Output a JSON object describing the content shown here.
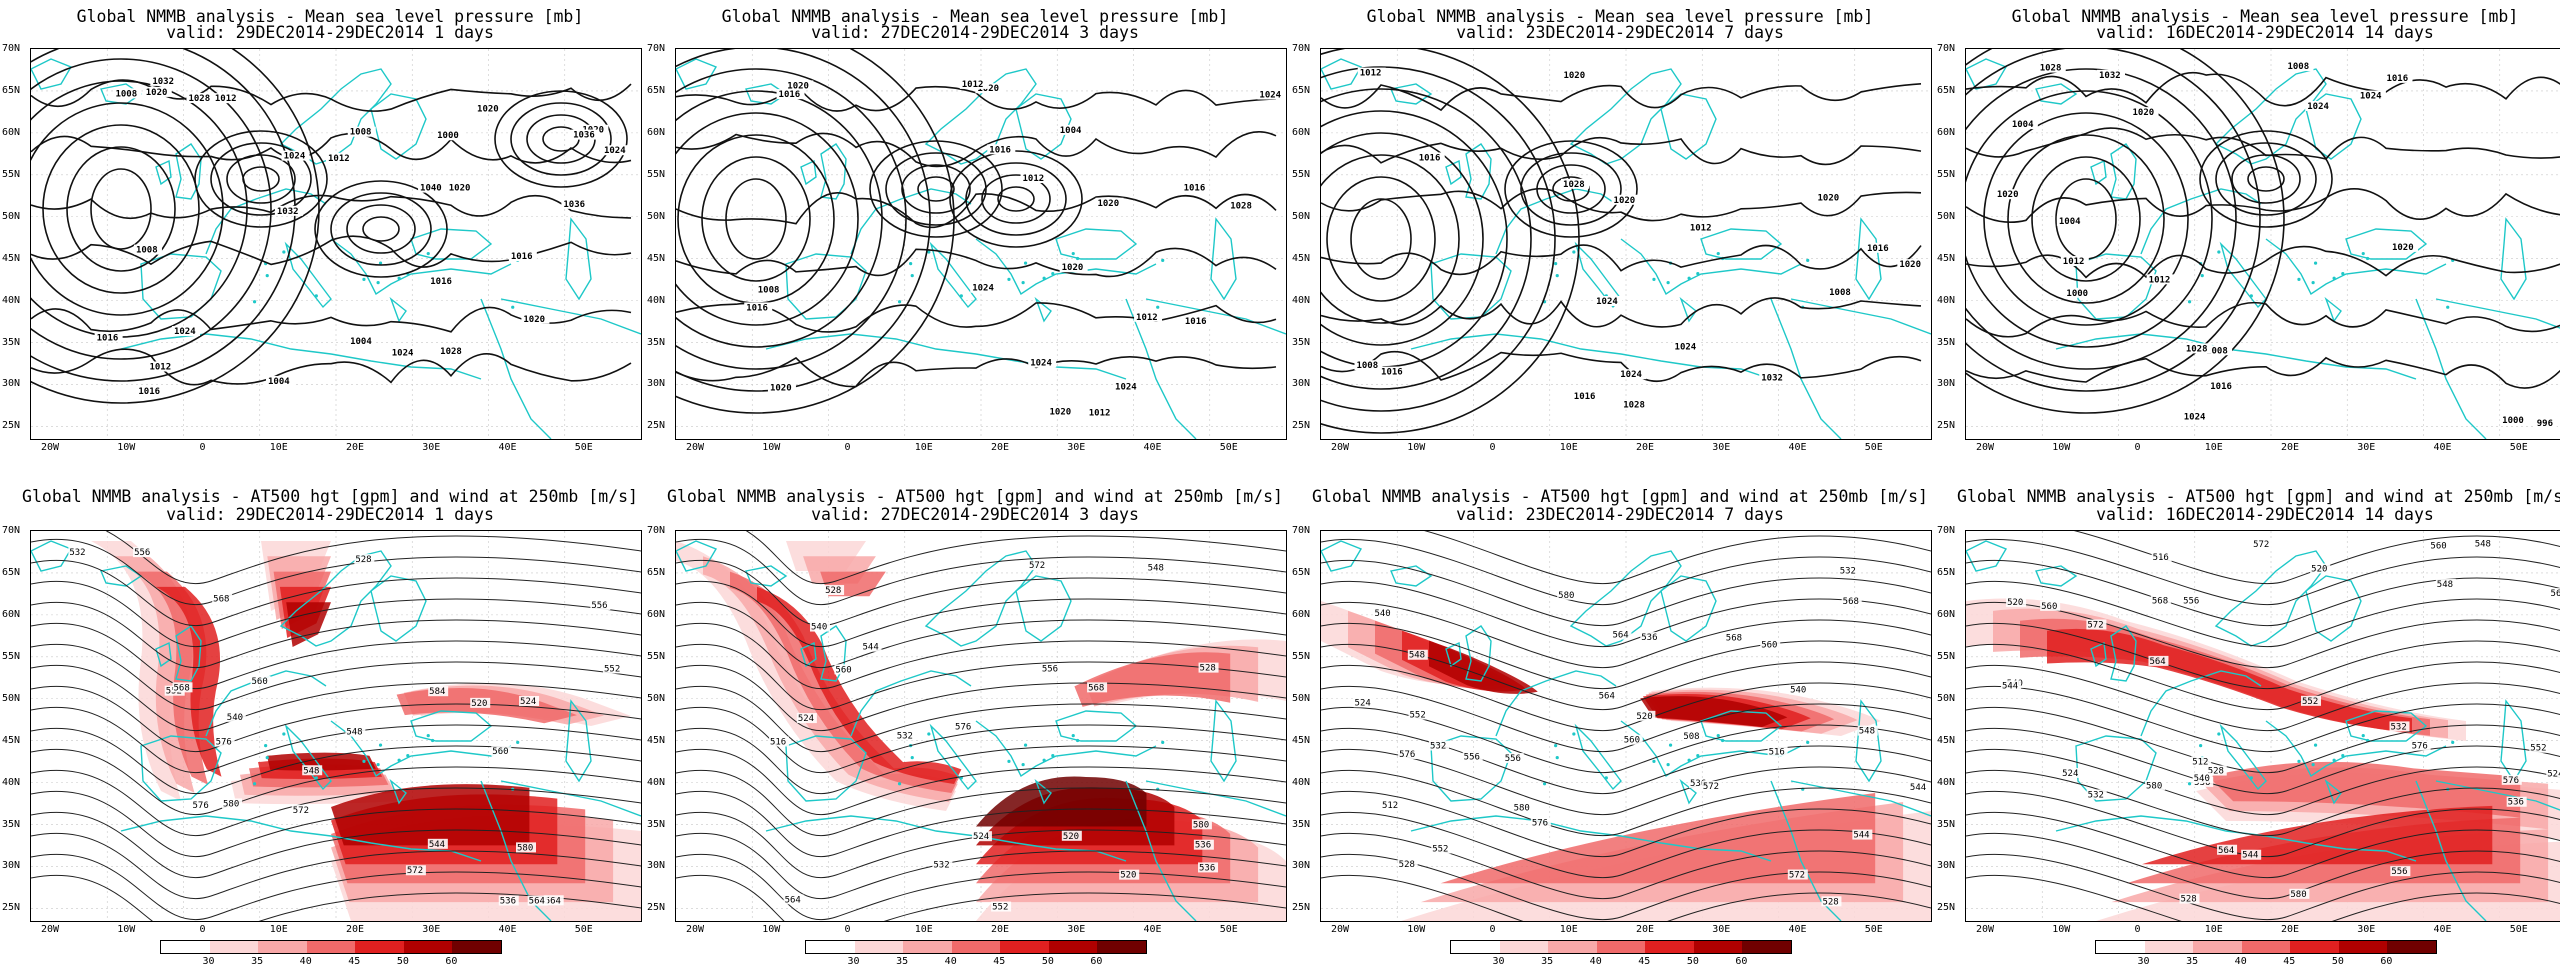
{
  "slp_panels": [
    {
      "title": "Global NMMB analysis - Mean sea level pressure [mb]",
      "valid": "valid: 29DEC2014-29DEC2014   1 days"
    },
    {
      "title": "Global NMMB analysis - Mean sea level pressure [mb]",
      "valid": "valid: 27DEC2014-29DEC2014   3 days"
    },
    {
      "title": "Global NMMB analysis - Mean sea level pressure [mb]",
      "valid": "valid: 23DEC2014-29DEC2014   7 days"
    },
    {
      "title": "Global NMMB analysis - Mean sea level pressure [mb]",
      "valid": "valid: 16DEC2014-29DEC2014  14 days"
    }
  ],
  "z500_panels": [
    {
      "title": "Global NMMB analysis - AT500 hgt [gpm] and wind at 250mb [m/s]",
      "valid": "valid: 29DEC2014-29DEC2014   1 days"
    },
    {
      "title": "Global NMMB analysis - AT500 hgt [gpm] and wind at 250mb [m/s]",
      "valid": "valid: 27DEC2014-29DEC2014   3 days"
    },
    {
      "title": "Global NMMB analysis - AT500 hgt [gpm] and wind at 250mb [m/s]",
      "valid": "valid: 23DEC2014-29DEC2014   7 days"
    },
    {
      "title": "Global NMMB analysis - AT500 hgt [gpm] and wind at 250mb [m/s]",
      "valid": "valid: 16DEC2014-29DEC2014  14 days"
    }
  ],
  "lat_labels": [
    "70N",
    "65N",
    "60N",
    "55N",
    "50N",
    "45N",
    "40N",
    "35N",
    "30N",
    "25N"
  ],
  "lon_labels": [
    "20W",
    "10W",
    "0",
    "10E",
    "20E",
    "30E",
    "40E",
    "50E"
  ],
  "colorbar": {
    "labels": [
      "30",
      "35",
      "40",
      "45",
      "50",
      "60"
    ],
    "colors": [
      "#ffffff",
      "#fcd7d7",
      "#f8a8a8",
      "#f06a6a",
      "#e02020",
      "#b00000",
      "#700000"
    ]
  },
  "slp_contour_labels": [
    [
      "1008",
      "1012",
      "1016",
      "1020",
      "1024",
      "1028",
      "1032",
      "1036",
      "1040",
      "1012",
      "1008",
      "1004",
      "1020",
      "1016",
      "1024",
      "1020",
      "1016",
      "1012",
      "1008",
      "1000",
      "1004",
      "1024",
      "1020",
      "1016",
      "1036",
      "1032",
      "1028",
      "1024",
      "1020"
    ],
    [
      "1016",
      "1020",
      "1016",
      "1012",
      "1020",
      "1024",
      "1028",
      "1024",
      "1020",
      "1016",
      "1012",
      "1008",
      "1004",
      "1012",
      "1016",
      "1020",
      "1024",
      "1020",
      "1016",
      "1012",
      "1024",
      "1020"
    ],
    [
      "1008",
      "1012",
      "1016",
      "1020",
      "1028",
      "1024",
      "1020",
      "1016",
      "1012",
      "1008",
      "1016",
      "1020",
      "1024",
      "1032",
      "1028",
      "1024",
      "1020",
      "1016"
    ],
    [
      "996",
      "1000",
      "1004",
      "1008",
      "1012",
      "1016",
      "1020",
      "1024",
      "1028",
      "1032",
      "1028",
      "1024",
      "1020",
      "1016",
      "1012",
      "1008",
      "1004",
      "1000",
      "1024",
      "1020"
    ]
  ],
  "z500_contour_labels": [
    [
      "548",
      "552",
      "556",
      "560",
      "564",
      "568",
      "572",
      "576",
      "580",
      "520",
      "524",
      "528",
      "532",
      "536",
      "540",
      "544",
      "548",
      "552",
      "556",
      "560",
      "564",
      "568",
      "572",
      "576",
      "580",
      "584"
    ],
    [
      "520",
      "524",
      "528",
      "532",
      "536",
      "540",
      "544",
      "548",
      "552",
      "556",
      "560",
      "564",
      "568",
      "572",
      "576",
      "580",
      "516",
      "520",
      "524",
      "528",
      "532",
      "536"
    ],
    [
      "528",
      "532",
      "536",
      "540",
      "544",
      "548",
      "552",
      "556",
      "560",
      "564",
      "568",
      "572",
      "576",
      "580",
      "508",
      "512",
      "516",
      "520",
      "524",
      "528",
      "532",
      "536",
      "540",
      "544",
      "548",
      "552",
      "556",
      "560",
      "564",
      "568",
      "572",
      "576",
      "580"
    ],
    [
      "520",
      "524",
      "528",
      "532",
      "536",
      "540",
      "544",
      "548",
      "552",
      "556",
      "560",
      "564",
      "568",
      "572",
      "576",
      "580",
      "512",
      "516",
      "520",
      "524",
      "528",
      "532",
      "536",
      "540",
      "544",
      "548",
      "552",
      "556",
      "560",
      "564",
      "568",
      "572",
      "576",
      "580"
    ]
  ]
}
